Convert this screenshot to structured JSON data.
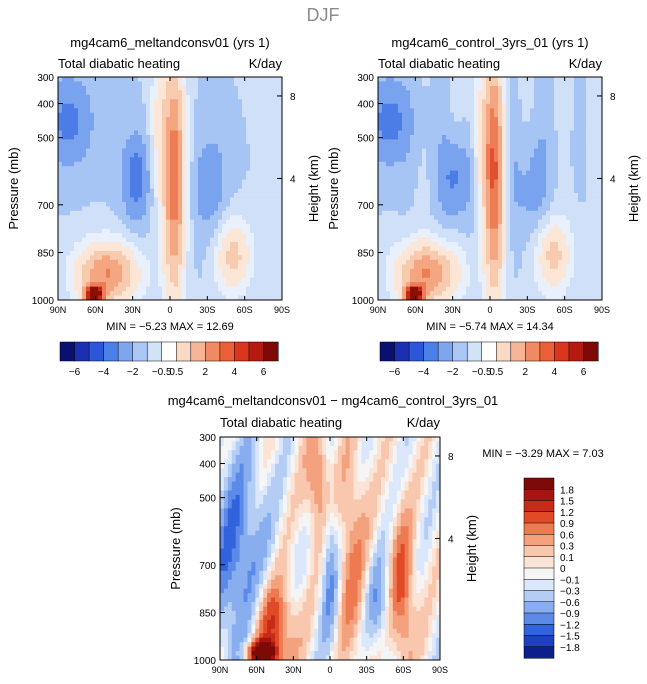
{
  "page_title": "DJF",
  "chart_data": [
    {
      "type": "heatmap",
      "title": "mg4cam6_meltandconsv01 (yrs 1)",
      "subtitle_left": "Total diabatic heating",
      "subtitle_right": "K/day",
      "ylabel": "Pressure (mb)",
      "ylabel_right": "Height (km)",
      "x_ticks": [
        "90N",
        "60N",
        "30N",
        "0",
        "30S",
        "60S",
        "90S"
      ],
      "y_ticks": [
        "300",
        "400",
        "500",
        "700",
        "850",
        "1000"
      ],
      "y_ticks_right": [
        "8",
        "4"
      ],
      "stats_text": "MIN =  −5.23   MAX =   12.69",
      "ylim": [
        1000,
        300
      ]
    },
    {
      "type": "heatmap",
      "title": "mg4cam6_control_3yrs_01 (yrs 1)",
      "subtitle_left": "Total diabatic heating",
      "subtitle_right": "K/day",
      "ylabel": "Pressure (mb)",
      "ylabel_right": "Height (km)",
      "x_ticks": [
        "90N",
        "60N",
        "30N",
        "0",
        "30S",
        "60S",
        "90S"
      ],
      "y_ticks": [
        "300",
        "400",
        "500",
        "700",
        "850",
        "1000"
      ],
      "y_ticks_right": [
        "8",
        "4"
      ],
      "stats_text": "MIN =  −5.74   MAX =   14.34",
      "ylim": [
        1000,
        300
      ]
    },
    {
      "type": "heatmap",
      "title": "mg4cam6_meltandconsv01 − mg4cam6_control_3yrs_01",
      "subtitle_left": "Total diabatic heating",
      "subtitle_right": "K/day",
      "ylabel": "Pressure (mb)",
      "ylabel_right": "Height (km)",
      "x_ticks": [
        "90N",
        "60N",
        "30N",
        "0",
        "30S",
        "60S",
        "90S"
      ],
      "y_ticks": [
        "300",
        "400",
        "500",
        "700",
        "850",
        "1000"
      ],
      "y_ticks_right": [
        "8",
        "4"
      ],
      "stats_text": "MIN =  −3.29   MAX =    7.03",
      "ylim": [
        1000,
        300
      ]
    }
  ],
  "colorbar_top": {
    "labels": [
      "−6",
      "−4",
      "−2",
      "−0.5",
      "0.5",
      "2",
      "4",
      "6"
    ],
    "colors": [
      "#0a1070",
      "#1a30b0",
      "#2c55d8",
      "#4a7fe8",
      "#7ea6f0",
      "#a9c6f5",
      "#d2e2f8",
      "#ffffff",
      "#fbd9c4",
      "#f6b598",
      "#f08a63",
      "#ea5f38",
      "#d9361c",
      "#b41b10",
      "#7d0a06"
    ]
  },
  "colorbar_bottom": {
    "labels": [
      "1.8",
      "1.5",
      "1.2",
      "0.9",
      "0.6",
      "0.3",
      "0.1",
      "0",
      "−0.1",
      "−0.3",
      "−0.6",
      "−0.9",
      "−1.2",
      "−1.5",
      "−1.8"
    ],
    "colors": [
      "#7d0a06",
      "#a51510",
      "#c82a18",
      "#e04a26",
      "#ee7a52",
      "#f4a17e",
      "#f9c7ad",
      "#fbe4d6",
      "#f5f5f5",
      "#dbe7fa",
      "#b4cdf4",
      "#88aef0",
      "#5b8ae8",
      "#3163dc",
      "#1d3fc0",
      "#0d1f8c"
    ]
  }
}
